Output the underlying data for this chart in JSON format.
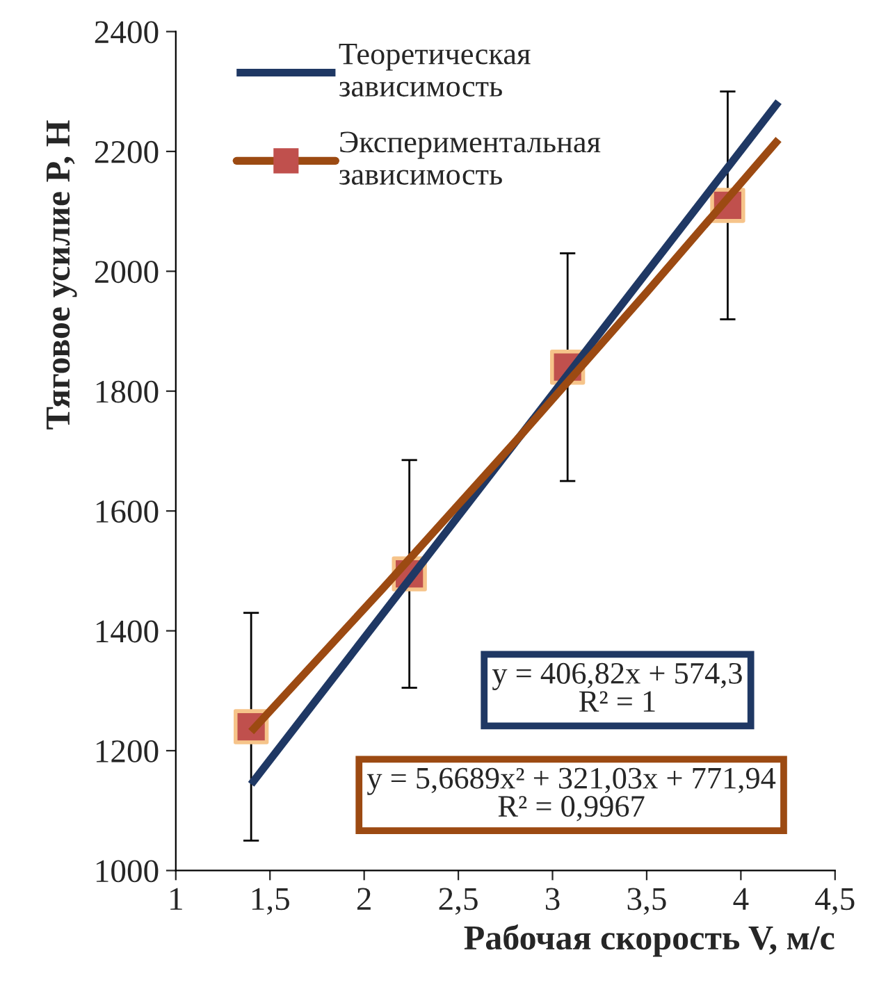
{
  "chart_data": {
    "type": "line",
    "xlabel": "Рабочая скорость V, м/с",
    "ylabel": "Тяговое усилие P, Н",
    "xlim": [
      1,
      4.5
    ],
    "xticks": [
      1,
      {
        "value": 1.5,
        "label": "1,5"
      },
      2,
      {
        "value": 2.5,
        "label": "2,5"
      },
      3,
      {
        "value": 3.5,
        "label": "3,5"
      },
      4,
      {
        "value": 4.5,
        "label": "4,5"
      }
    ],
    "ylim": [
      1000,
      2400
    ],
    "yticks": [
      1000,
      1200,
      1400,
      1600,
      1800,
      2000,
      2200,
      2400
    ],
    "grid": false,
    "legend": "top left",
    "series": [
      {
        "name": "Теоретическая зависимость",
        "color": "#1f3864",
        "x": [
          1.4,
          4.2
        ],
        "values": [
          1144,
          2283
        ]
      },
      {
        "color": "#9c4a12",
        "x": [
          1.4,
          2.1,
          2.8,
          3.5,
          4.2
        ],
        "values": [
          1232,
          1471,
          1715,
          1965,
          2220
        ]
      },
      {
        "name": "Экспериментальная зависимость",
        "type": "scatter",
        "marker": "square",
        "color": "#c0504d",
        "x": [
          1.4,
          2.24,
          3.08,
          3.93
        ],
        "values": [
          1240,
          1495,
          1840,
          2110
        ],
        "errors": [
          190,
          190,
          190,
          190
        ]
      }
    ],
    "annotations": [
      "y = 406,82x + 574,3\nR² = 1",
      "y = 5,6689x² + 321,03x + 771,94\nR² = 0,9967"
    ]
  }
}
